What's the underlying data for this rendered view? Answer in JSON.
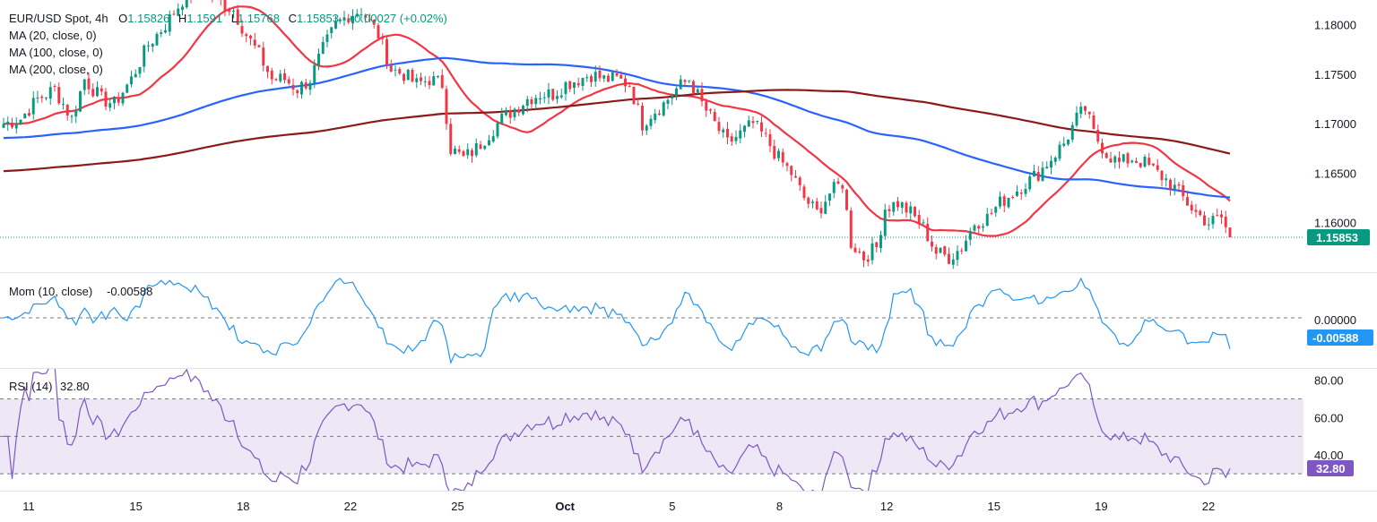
{
  "header": {
    "symbol": "EUR/USD Spot, 4h",
    "open_label": "O",
    "open": "1.15826",
    "high_label": "H",
    "high": "1.1591",
    "low_label": "L",
    "low": "1.15768",
    "close_label": "C",
    "close": "1.15853",
    "change": "+0.00027 (+0.02%)",
    "ma_legend": [
      "MA (20, close, 0)",
      "MA (100, close, 0)",
      "MA (200, close, 0)"
    ]
  },
  "panes": {
    "price": {
      "ticks": [
        "1.18000",
        "1.17500",
        "1.17000",
        "1.16500",
        "1.16000"
      ],
      "last_price": "1.15853"
    },
    "momentum": {
      "title": "Mom (10, close)",
      "value": "-0.00588",
      "tick": "0.00000",
      "last_tag": "-0.00588"
    },
    "rsi": {
      "title": "RSI (14)",
      "value": "32.80",
      "ticks": [
        "80.00",
        "60.00",
        "40.00"
      ],
      "last_tag": "32.80"
    }
  },
  "x_labels": [
    "11",
    "15",
    "18",
    "22",
    "25",
    "Oct",
    "5",
    "8",
    "12",
    "15",
    "19",
    "22"
  ],
  "colors": {
    "up": "#089981",
    "down": "#f23645",
    "ma20": "#f23645",
    "ma100": "#2962ff",
    "ma200": "#8b1a1a",
    "momentum": "#2196f3",
    "rsi": "#7e57c2",
    "rsi_band": "#ede7f6",
    "last_tag_bg": "#089981",
    "mom_tag_bg": "#2196f3",
    "rsi_tag_bg": "#7e57c2"
  },
  "chart_data": {
    "type": "candlestick",
    "title": "EUR/USD Spot, 4h",
    "x_labels": [
      "11",
      "15",
      "18",
      "22",
      "25",
      "Oct",
      "5",
      "8",
      "12",
      "15",
      "19",
      "22"
    ],
    "price_ylim": [
      1.155,
      1.1825
    ],
    "price_anchors": [
      [
        0,
        1.17
      ],
      [
        4,
        1.1705
      ],
      [
        8,
        1.1725
      ],
      [
        12,
        1.1735
      ],
      [
        16,
        1.1705
      ],
      [
        19,
        1.1745
      ],
      [
        23,
        1.1725
      ],
      [
        26,
        1.172
      ],
      [
        30,
        1.1745
      ],
      [
        34,
        1.178
      ],
      [
        38,
        1.18
      ],
      [
        42,
        1.1825
      ],
      [
        46,
        1.184
      ],
      [
        50,
        1.1825
      ],
      [
        54,
        1.1815
      ],
      [
        57,
        1.179
      ],
      [
        60,
        1.177
      ],
      [
        63,
        1.1745
      ],
      [
        66,
        1.1745
      ],
      [
        69,
        1.1735
      ],
      [
        72,
        1.1745
      ],
      [
        75,
        1.1775
      ],
      [
        78,
        1.18
      ],
      [
        81,
        1.181
      ],
      [
        84,
        1.1815
      ],
      [
        88,
        1.179
      ],
      [
        91,
        1.1755
      ],
      [
        94,
        1.175
      ],
      [
        97,
        1.174
      ],
      [
        100,
        1.1745
      ],
      [
        103,
        1.174
      ],
      [
        105,
        1.1675
      ],
      [
        108,
        1.1665
      ],
      [
        111,
        1.1675
      ],
      [
        114,
        1.169
      ],
      [
        117,
        1.1705
      ],
      [
        120,
        1.1715
      ],
      [
        123,
        1.1725
      ],
      [
        126,
        1.173
      ],
      [
        129,
        1.173
      ],
      [
        132,
        1.174
      ],
      [
        135,
        1.1745
      ],
      [
        138,
        1.175
      ],
      [
        141,
        1.1745
      ],
      [
        144,
        1.1745
      ],
      [
        147,
        1.174
      ],
      [
        150,
        1.17
      ],
      [
        152,
        1.171
      ],
      [
        155,
        1.172
      ],
      [
        158,
        1.1735
      ],
      [
        161,
        1.1745
      ],
      [
        164,
        1.172
      ],
      [
        167,
        1.17
      ],
      [
        170,
        1.168
      ],
      [
        173,
        1.169
      ],
      [
        176,
        1.17
      ],
      [
        179,
        1.1685
      ],
      [
        182,
        1.1665
      ],
      [
        185,
        1.165
      ],
      [
        188,
        1.1625
      ],
      [
        191,
        1.161
      ],
      [
        194,
        1.163
      ],
      [
        197,
        1.164
      ],
      [
        199,
        1.158
      ],
      [
        202,
        1.1565
      ],
      [
        205,
        1.1575
      ],
      [
        207,
        1.1615
      ],
      [
        210,
        1.162
      ],
      [
        213,
        1.161
      ],
      [
        216,
        1.1595
      ],
      [
        219,
        1.157
      ],
      [
        222,
        1.1565
      ],
      [
        225,
        1.1575
      ],
      [
        228,
        1.16
      ],
      [
        231,
        1.1605
      ],
      [
        234,
        1.162
      ],
      [
        237,
        1.163
      ],
      [
        240,
        1.164
      ],
      [
        243,
        1.165
      ],
      [
        246,
        1.1665
      ],
      [
        249,
        1.168
      ],
      [
        252,
        1.1705
      ],
      [
        254,
        1.1715
      ],
      [
        256,
        1.169
      ],
      [
        259,
        1.167
      ],
      [
        262,
        1.166
      ],
      [
        265,
        1.1665
      ],
      [
        268,
        1.166
      ],
      [
        271,
        1.165
      ],
      [
        274,
        1.164
      ],
      [
        277,
        1.1625
      ],
      [
        280,
        1.161
      ],
      [
        283,
        1.16
      ],
      [
        286,
        1.1605
      ],
      [
        288,
        1.1585
      ]
    ],
    "candle_count": 289,
    "last_close": 1.15853,
    "ma_series": [
      {
        "name": "MA (20, close, 0)",
        "period": 20
      },
      {
        "name": "MA (100, close, 0)",
        "period": 100
      },
      {
        "name": "MA (200, close, 0)",
        "period": 200
      }
    ],
    "momentum": {
      "name": "Mom (10, close)",
      "period": 10,
      "last": -0.00588,
      "ylim": [
        -0.0095,
        0.0085
      ]
    },
    "rsi": {
      "name": "RSI (14)",
      "period": 14,
      "last": 32.8,
      "ylim": [
        21,
        86
      ],
      "levels": [
        30,
        50,
        70
      ]
    },
    "grid": false
  }
}
